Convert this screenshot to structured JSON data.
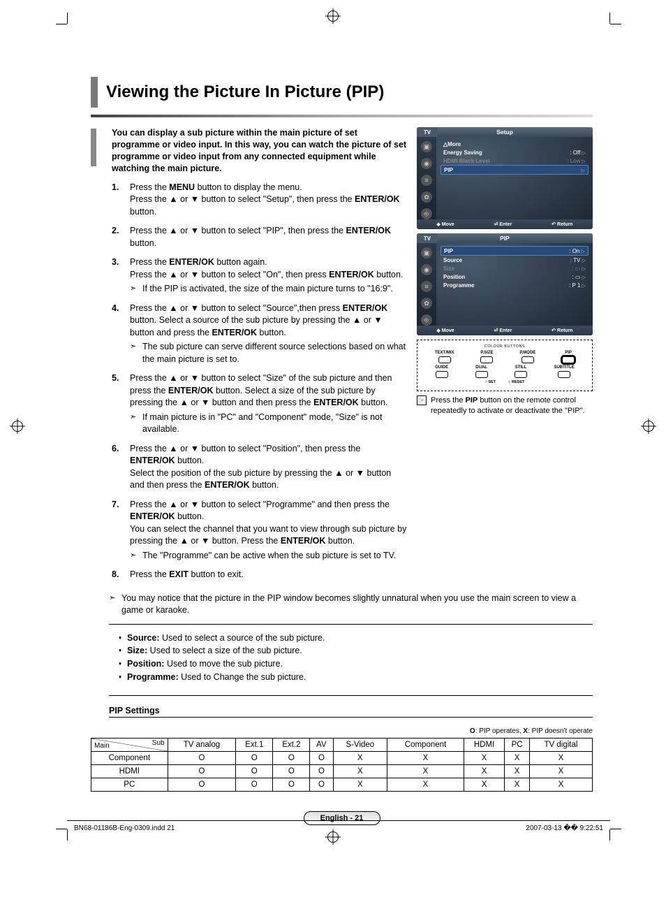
{
  "title": "Viewing the Picture In Picture (PIP)",
  "intro": "You can display a sub picture within the main picture of set programme or video input. In this way, you can watch the picture of set programme or video input from any connected equipment while watching the main picture.",
  "steps": [
    {
      "html": "Press the <b>MENU</b> button to display the menu.<br>Press the ▲ or ▼ button to select \"Setup\", then press the <b>ENTER/OK</b> button."
    },
    {
      "html": "Press the ▲ or ▼ button to select \"PIP\", then press the <b>ENTER/OK</b> button."
    },
    {
      "html": "Press the <b>ENTER/OK</b> button again.<br>Press the ▲ or ▼ button to select \"On\", then press <b>ENTER/OK</b> button.",
      "notes": [
        "If the PIP is activated, the size of the main picture turns to \"16:9\"."
      ]
    },
    {
      "html": "Press the ▲ or ▼ button to select \"Source\",then press <b>ENTER/OK</b> button. Select a source of the sub picture by pressing the ▲ or ▼ button and press the <b>ENTER/OK</b> button.",
      "notes": [
        "The sub picture can serve different source selections based on what the main picture is set to."
      ]
    },
    {
      "html": "Press the ▲ or ▼ button to select \"Size\" of the sub picture and then press the <b>ENTER/OK</b> button. Select a size of the sub picture by pressing the ▲ or ▼ button and then press the <b>ENTER/OK</b> button.",
      "notes": [
        "If main picture is in \"PC\" and \"Component\" mode, \"Size\" is not available."
      ]
    },
    {
      "html": "Press the ▲ or ▼ button to select \"Position\", then press the <b>ENTER/OK</b> button.<br>Select the position of the sub picture by pressing the ▲ or ▼ button and then press the <b>ENTER/OK</b> button."
    },
    {
      "html": "Press the ▲ or ▼ button to select \"Programme\" and then press the <b>ENTER/OK</b> button.<br>You can select the channel that you want to view through sub picture by pressing the ▲ or ▼ button. Press the <b>ENTER/OK</b> button.",
      "notes": [
        "The \"Programme\" can be active when the sub picture is set to TV."
      ]
    },
    {
      "html": "Press the <b>EXIT</b> button to exit."
    }
  ],
  "final_note": "You may notice that the picture in the PIP window becomes slightly unnatural when you use the main screen to view a game or karaoke.",
  "bullets": [
    {
      "term": "Source:",
      "desc": "Used to select a source of the sub picture."
    },
    {
      "term": "Size:",
      "desc": "Used to select a size of the sub picture."
    },
    {
      "term": "Position:",
      "desc": "Used to move the sub picture."
    },
    {
      "term": "Programme:",
      "desc": "Used to Change the sub picture."
    }
  ],
  "osd1": {
    "tab_left": "TV",
    "title": "Setup",
    "rows": [
      {
        "label": "△More",
        "value": "",
        "cls": ""
      },
      {
        "label": "Energy Saving",
        "value": ": Off",
        "cls": "",
        "arr": true
      },
      {
        "label": "HDMI Black Level",
        "value": ": Low",
        "cls": "dim",
        "arr": true
      },
      {
        "label": "PIP",
        "value": "",
        "cls": "sel",
        "arr": true
      }
    ],
    "foot": {
      "move": "Move",
      "enter": "Enter",
      "ret": "Return"
    }
  },
  "osd2": {
    "tab_left": "TV",
    "title": "PIP",
    "rows": [
      {
        "label": "PIP",
        "value": ": On",
        "cls": "sel",
        "arr": true
      },
      {
        "label": "Source",
        "value": ": TV",
        "cls": "",
        "arr": true
      },
      {
        "label": "Size",
        "value": ": ▭",
        "cls": "dim",
        "arr": true
      },
      {
        "label": "Position",
        "value": ": ▭",
        "cls": "",
        "arr": true
      },
      {
        "label": "Programme",
        "value": ": P 1",
        "cls": "",
        "arr": true
      }
    ],
    "foot": {
      "move": "Move",
      "enter": "Enter",
      "ret": "Return"
    }
  },
  "remote": {
    "header": "COLOUR BUTTONS",
    "row1": [
      "TEXT/MIX",
      "P.SIZE",
      "P.MODE",
      "PIP"
    ],
    "row2": [
      "GUIDE",
      "DUAL",
      "STILL",
      "SUBTITLE"
    ],
    "row3": [
      "SET",
      "RESET"
    ]
  },
  "remote_note": "Press the <b>PIP</b> button on the remote control repeatedly to activate or deactivate the \"PIP\".",
  "pip_settings": {
    "title": "PIP Settings",
    "legend_o": "O",
    "legend_o_txt": ": PIP operates, ",
    "legend_x": "X",
    "legend_x_txt": ": PIP doesn't operate",
    "main_lbl": "Main",
    "sub_lbl": "Sub",
    "columns": [
      "TV analog",
      "Ext.1",
      "Ext.2",
      "AV",
      "S-Video",
      "Component",
      "HDMI",
      "PC",
      "TV digital"
    ],
    "rows": [
      {
        "name": "Component",
        "vals": [
          "O",
          "O",
          "O",
          "O",
          "X",
          "X",
          "X",
          "X",
          "X"
        ]
      },
      {
        "name": "HDMI",
        "vals": [
          "O",
          "O",
          "O",
          "O",
          "X",
          "X",
          "X",
          "X",
          "X"
        ]
      },
      {
        "name": "PC",
        "vals": [
          "O",
          "O",
          "O",
          "O",
          "X",
          "X",
          "X",
          "X",
          "X"
        ]
      }
    ]
  },
  "page_num": "English - 21",
  "footer_left": "BN68-01186B-Eng-0309.indd   21",
  "footer_right": "2007-03-13   �� 9:22:51"
}
